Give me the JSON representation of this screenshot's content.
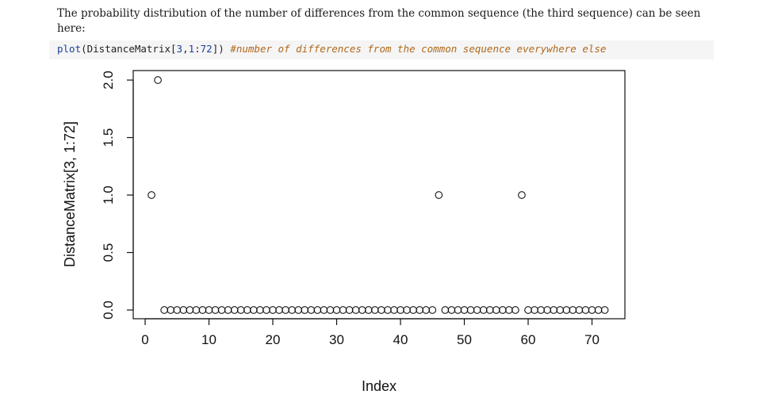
{
  "cell": {
    "intro_text": "The probability distribution of the number of differences from the common sequence (the third sequence) can be seen here:",
    "code": {
      "fn": "plot",
      "open": "(DistanceMatrix[",
      "num_a": "3",
      "sep1": ",",
      "num_b": "1",
      "sep2": ":",
      "num_c": "72",
      "close": "])",
      "comment": "#number of differences from the common sequence everywhere else"
    }
  },
  "chart_data": {
    "type": "scatter",
    "xlabel": "Index",
    "ylabel": "DistanceMatrix[3, 1:72]",
    "xlim": [
      0,
      72
    ],
    "ylim": [
      0,
      2
    ],
    "xticks": [
      0,
      10,
      20,
      30,
      40,
      50,
      60,
      70
    ],
    "xtick_labels": [
      "0",
      "10",
      "20",
      "30",
      "40",
      "50",
      "60",
      "70"
    ],
    "yticks": [
      0,
      0.5,
      1,
      1.5,
      2
    ],
    "ytick_labels": [
      "0.0",
      "0.5",
      "1.0",
      "1.5",
      "2.0"
    ],
    "grid": false,
    "marker": "open-circle",
    "x": [
      1,
      2,
      3,
      4,
      5,
      6,
      7,
      8,
      9,
      10,
      11,
      12,
      13,
      14,
      15,
      16,
      17,
      18,
      19,
      20,
      21,
      22,
      23,
      24,
      25,
      26,
      27,
      28,
      29,
      30,
      31,
      32,
      33,
      34,
      35,
      36,
      37,
      38,
      39,
      40,
      41,
      42,
      43,
      44,
      45,
      46,
      47,
      48,
      49,
      50,
      51,
      52,
      53,
      54,
      55,
      56,
      57,
      58,
      59,
      60,
      61,
      62,
      63,
      64,
      65,
      66,
      67,
      68,
      69,
      70,
      71,
      72
    ],
    "y": [
      1,
      2,
      0,
      0,
      0,
      0,
      0,
      0,
      0,
      0,
      0,
      0,
      0,
      0,
      0,
      0,
      0,
      0,
      0,
      0,
      0,
      0,
      0,
      0,
      0,
      0,
      0,
      0,
      0,
      0,
      0,
      0,
      0,
      0,
      0,
      0,
      0,
      0,
      0,
      0,
      0,
      0,
      0,
      0,
      0,
      1,
      0,
      0,
      0,
      0,
      0,
      0,
      0,
      0,
      0,
      0,
      0,
      0,
      1,
      0,
      0,
      0,
      0,
      0,
      0,
      0,
      0,
      0,
      0,
      0,
      0,
      0
    ]
  }
}
